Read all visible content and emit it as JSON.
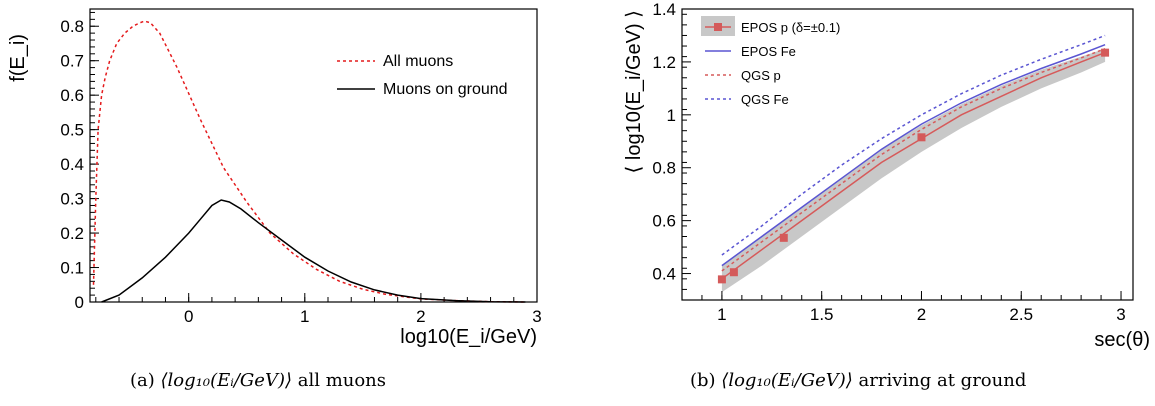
{
  "colors": {
    "red": "#e41a1c",
    "black": "#000000",
    "blue": "#5a55d2",
    "salmon": "#d65a5a",
    "band": "#c8c8c8",
    "marker": "#d45a5a"
  },
  "chart_data": [
    {
      "type": "line",
      "panel": "a",
      "ylabel": "f(E_i)",
      "xlabel": "log10(E_i/GeV)",
      "xlim": [
        -0.85,
        3.0
      ],
      "ylim": [
        0,
        0.85
      ],
      "xticks": [
        0,
        1,
        2,
        3
      ],
      "yticks": [
        0,
        0.1,
        0.2,
        0.3,
        0.4,
        0.5,
        0.6,
        0.7,
        0.8
      ],
      "ytick_labels": [
        "0",
        "0.1",
        "0.2",
        "0.3",
        "0.4",
        "0.5",
        "0.6",
        "0.7",
        "0.8"
      ],
      "legend_position": "top-right",
      "series": [
        {
          "name": "All muons",
          "style": "dotted",
          "color": "#e41a1c",
          "x": [
            -0.82,
            -0.8,
            -0.78,
            -0.75,
            -0.72,
            -0.68,
            -0.62,
            -0.55,
            -0.48,
            -0.42,
            -0.38,
            -0.33,
            -0.25,
            -0.1,
            0.1,
            0.3,
            0.5,
            0.7,
            0.9,
            1.1,
            1.3,
            1.5,
            1.7,
            2.0,
            2.3,
            2.6,
            2.9
          ],
          "y": [
            0.05,
            0.3,
            0.5,
            0.6,
            0.65,
            0.7,
            0.75,
            0.78,
            0.8,
            0.81,
            0.815,
            0.81,
            0.78,
            0.68,
            0.53,
            0.39,
            0.29,
            0.2,
            0.14,
            0.095,
            0.06,
            0.037,
            0.022,
            0.009,
            0.004,
            0.001,
            0.0
          ]
        },
        {
          "name": "Muons on ground",
          "style": "solid",
          "color": "#000000",
          "x": [
            -0.75,
            -0.6,
            -0.4,
            -0.2,
            0.0,
            0.1,
            0.2,
            0.28,
            0.35,
            0.45,
            0.6,
            0.8,
            1.0,
            1.2,
            1.4,
            1.6,
            1.8,
            2.0,
            2.3,
            2.6,
            2.9
          ],
          "y": [
            0.0,
            0.02,
            0.07,
            0.13,
            0.2,
            0.24,
            0.28,
            0.296,
            0.29,
            0.27,
            0.23,
            0.18,
            0.13,
            0.09,
            0.058,
            0.035,
            0.02,
            0.01,
            0.004,
            0.001,
            0.0
          ]
        }
      ]
    },
    {
      "type": "line",
      "panel": "b",
      "ylabel": "⟨ log10(E_i/GeV) ⟩",
      "xlabel": "sec(θ)",
      "xlim": [
        0.8,
        3.06
      ],
      "ylim": [
        0.3,
        1.4
      ],
      "xticks": [
        1,
        1.5,
        2,
        2.5,
        3
      ],
      "xtick_labels": [
        "1",
        "1.5",
        "2",
        "2.5",
        "3"
      ],
      "yticks": [
        0.4,
        0.6,
        0.8,
        1.0,
        1.2,
        1.4
      ],
      "ytick_labels": [
        "0.4",
        "0.6",
        "0.8",
        "1",
        "1.2",
        "1.4"
      ],
      "legend_position": "top-left",
      "band": {
        "x": [
          1.0,
          1.2,
          1.4,
          1.6,
          1.8,
          2.0,
          2.2,
          2.4,
          2.6,
          2.8,
          2.92
        ],
        "upper": [
          0.43,
          0.54,
          0.65,
          0.76,
          0.87,
          0.96,
          1.04,
          1.11,
          1.17,
          1.22,
          1.25
        ],
        "lower": [
          0.33,
          0.43,
          0.54,
          0.65,
          0.76,
          0.86,
          0.95,
          1.03,
          1.1,
          1.16,
          1.2
        ]
      },
      "series": [
        {
          "name": "EPOS p (δ=±0.1)",
          "style": "solid-markers",
          "color": "#d65a5a",
          "x": [
            1.0,
            1.2,
            1.4,
            1.6,
            1.8,
            2.0,
            2.2,
            2.4,
            2.6,
            2.8,
            2.92
          ],
          "y": [
            0.38,
            0.49,
            0.6,
            0.71,
            0.82,
            0.91,
            1.0,
            1.07,
            1.14,
            1.2,
            1.235
          ],
          "markers": {
            "x": [
              1.0,
              1.06,
              1.31,
              2.0,
              2.92
            ],
            "y": [
              0.378,
              0.405,
              0.535,
              0.915,
              1.235
            ]
          }
        },
        {
          "name": "EPOS Fe",
          "style": "solid",
          "color": "#5a55d2",
          "x": [
            1.0,
            1.2,
            1.4,
            1.6,
            1.8,
            2.0,
            2.2,
            2.4,
            2.6,
            2.8,
            2.92
          ],
          "y": [
            0.43,
            0.54,
            0.65,
            0.76,
            0.87,
            0.965,
            1.045,
            1.115,
            1.175,
            1.23,
            1.265
          ]
        },
        {
          "name": "QGS p",
          "style": "dotted",
          "color": "#d65a5a",
          "x": [
            1.0,
            1.2,
            1.4,
            1.6,
            1.8,
            2.0,
            2.2,
            2.4,
            2.6,
            2.8,
            2.92
          ],
          "y": [
            0.41,
            0.52,
            0.63,
            0.74,
            0.85,
            0.945,
            1.03,
            1.1,
            1.16,
            1.215,
            1.25
          ]
        },
        {
          "name": "QGS Fe",
          "style": "dotted",
          "color": "#5a55d2",
          "x": [
            1.0,
            1.2,
            1.4,
            1.6,
            1.8,
            2.0,
            2.2,
            2.4,
            2.6,
            2.8,
            2.92
          ],
          "y": [
            0.47,
            0.58,
            0.7,
            0.81,
            0.91,
            1.0,
            1.08,
            1.15,
            1.21,
            1.265,
            1.3
          ]
        }
      ]
    }
  ],
  "captions": {
    "a_prefix": "(a) ",
    "a_math": "⟨log₁₀(Eᵢ/GeV)⟩",
    "a_suffix": " all muons",
    "b_prefix": "(b) ",
    "b_math": "⟨log₁₀(Eᵢ/GeV)⟩",
    "b_suffix": " arriving at ground"
  }
}
